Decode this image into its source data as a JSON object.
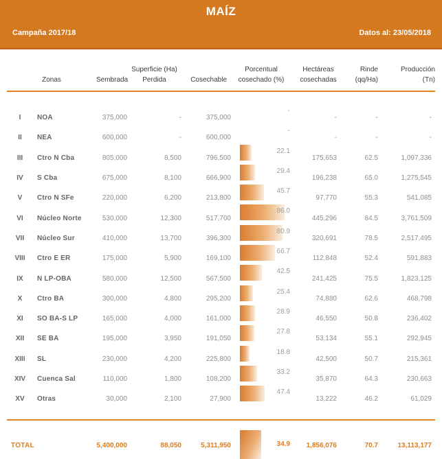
{
  "colors": {
    "accent_orange": "#D4791F",
    "rule_orange": "#E5831F",
    "total_orange": "#E07C1E",
    "bar_start": "#DB7C2D",
    "bar_end": "#F9EDE0",
    "header_text": "#3C3C3C",
    "label_text": "#646464",
    "value_text": "#8E8E8E"
  },
  "band": {
    "title": "MAÍZ",
    "campaign": "Campaña 2017/18",
    "data_as_of": "Datos al: 23/05/2018"
  },
  "table": {
    "headers": {
      "zonas": "Zonas",
      "sembrada": "Sembrada",
      "superficie_group": "Superficie (Ha)",
      "perdida": "Perdida",
      "cosechable": "Cosechable",
      "porcentual_l1": "Porcentual",
      "porcentual_l2": "cosechado (%)",
      "hectareas_l1": "Hectáreas",
      "hectareas_l2": "cosechadas",
      "rinde_l1": "Rinde",
      "rinde_l2": "(qq/Ha)",
      "produccion_l1": "Producción",
      "produccion_l2": "(Tn)"
    },
    "rows": [
      {
        "num": "I",
        "zona": "NOA",
        "sembrada": "375,000",
        "perdida": "-",
        "cosechable": "375,000",
        "pct": null,
        "pct_label": "-",
        "hectareas": "-",
        "rinde": "-",
        "produccion": "-"
      },
      {
        "num": "II",
        "zona": "NEA",
        "sembrada": "600,000",
        "perdida": "-",
        "cosechable": "600,000",
        "pct": null,
        "pct_label": "-",
        "hectareas": "-",
        "rinde": "-",
        "produccion": "-"
      },
      {
        "num": "III",
        "zona": "Ctro N Cba",
        "sembrada": "805,000",
        "perdida": "8,500",
        "cosechable": "796,500",
        "pct": 22.1,
        "pct_label": "22.1",
        "hectareas": "175,653",
        "rinde": "62.5",
        "produccion": "1,097,336"
      },
      {
        "num": "IV",
        "zona": "S Cba",
        "sembrada": "675,000",
        "perdida": "8,100",
        "cosechable": "666,900",
        "pct": 29.4,
        "pct_label": "29.4",
        "hectareas": "196,238",
        "rinde": "65.0",
        "produccion": "1,275,545"
      },
      {
        "num": "V",
        "zona": "Ctro N SFe",
        "sembrada": "220,000",
        "perdida": "6,200",
        "cosechable": "213,800",
        "pct": 45.7,
        "pct_label": "45.7",
        "hectareas": "97,770",
        "rinde": "55.3",
        "produccion": "541,085"
      },
      {
        "num": "VI",
        "zona": "Núcleo Norte",
        "sembrada": "530,000",
        "perdida": "12,300",
        "cosechable": "517,700",
        "pct": 86.0,
        "pct_label": "86.0",
        "hectareas": "445,296",
        "rinde": "84.5",
        "produccion": "3,761,509"
      },
      {
        "num": "VII",
        "zona": "Núcleo Sur",
        "sembrada": "410,000",
        "perdida": "13,700",
        "cosechable": "396,300",
        "pct": 80.9,
        "pct_label": "80.9",
        "hectareas": "320,691",
        "rinde": "78.5",
        "produccion": "2,517,495"
      },
      {
        "num": "VIII",
        "zona": "Ctro E ER",
        "sembrada": "175,000",
        "perdida": "5,900",
        "cosechable": "169,100",
        "pct": 66.7,
        "pct_label": "66.7",
        "hectareas": "112,848",
        "rinde": "52.4",
        "produccion": "591,883"
      },
      {
        "num": "IX",
        "zona": "N LP-OBA",
        "sembrada": "580,000",
        "perdida": "12,500",
        "cosechable": "567,500",
        "pct": 42.5,
        "pct_label": "42.5",
        "hectareas": "241,425",
        "rinde": "75.5",
        "produccion": "1,823,125"
      },
      {
        "num": "X",
        "zona": "Ctro BA",
        "sembrada": "300,000",
        "perdida": "4,800",
        "cosechable": "295,200",
        "pct": 25.4,
        "pct_label": "25.4",
        "hectareas": "74,880",
        "rinde": "62.6",
        "produccion": "468,798"
      },
      {
        "num": "XI",
        "zona": "SO BA-S LP",
        "sembrada": "165,000",
        "perdida": "4,000",
        "cosechable": "161,000",
        "pct": 28.9,
        "pct_label": "28.9",
        "hectareas": "46,550",
        "rinde": "50.8",
        "produccion": "236,402"
      },
      {
        "num": "XII",
        "zona": "SE BA",
        "sembrada": "195,000",
        "perdida": "3,950",
        "cosechable": "191,050",
        "pct": 27.8,
        "pct_label": "27.8",
        "hectareas": "53,134",
        "rinde": "55.1",
        "produccion": "292,945"
      },
      {
        "num": "XIII",
        "zona": "SL",
        "sembrada": "230,000",
        "perdida": "4,200",
        "cosechable": "225,800",
        "pct": 18.8,
        "pct_label": "18.8",
        "hectareas": "42,500",
        "rinde": "50.7",
        "produccion": "215,361"
      },
      {
        "num": "XIV",
        "zona": "Cuenca Sal",
        "sembrada": "110,000",
        "perdida": "1,800",
        "cosechable": "108,200",
        "pct": 33.2,
        "pct_label": "33.2",
        "hectareas": "35,870",
        "rinde": "64.3",
        "produccion": "230,663"
      },
      {
        "num": "XV",
        "zona": "Otras",
        "sembrada": "30,000",
        "perdida": "2,100",
        "cosechable": "27,900",
        "pct": 47.4,
        "pct_label": "47.4",
        "hectareas": "13,222",
        "rinde": "46.2",
        "produccion": "61,029"
      }
    ],
    "total": {
      "label": "TOTAL",
      "sembrada": "5,400,000",
      "perdida": "88,050",
      "cosechable": "5,311,950",
      "pct": 34.9,
      "pct_label": "34.9",
      "hectareas": "1,856,076",
      "rinde": "70.7",
      "produccion": "13,113,177"
    }
  },
  "chart_data": {
    "type": "table",
    "title": "MAÍZ",
    "subtitle": "Campaña 2017/18 — Datos al: 23/05/2018",
    "embedded_bar_column": "Porcentual cosechado (%)",
    "bar_range": [
      0,
      100
    ],
    "columns": [
      "Zonas",
      "Superficie (Ha) Sembrada",
      "Superficie (Ha) Perdida",
      "Superficie (Ha) Cosechable",
      "Porcentual cosechado (%)",
      "Hectáreas cosechadas",
      "Rinde (qq/Ha)",
      "Producción (Tn)"
    ],
    "categories": [
      "I NOA",
      "II NEA",
      "III Ctro N Cba",
      "IV S Cba",
      "V Ctro N SFe",
      "VI Núcleo Norte",
      "VII Núcleo Sur",
      "VIII Ctro E ER",
      "IX N LP-OBA",
      "X Ctro BA",
      "XI SO BA-S LP",
      "XII SE BA",
      "XIII SL",
      "XIV Cuenca Sal",
      "XV Otras"
    ],
    "series": [
      {
        "name": "Sembrada (Ha)",
        "values": [
          375000,
          600000,
          805000,
          675000,
          220000,
          530000,
          410000,
          175000,
          580000,
          300000,
          165000,
          195000,
          230000,
          110000,
          30000
        ]
      },
      {
        "name": "Perdida (Ha)",
        "values": [
          null,
          null,
          8500,
          8100,
          6200,
          12300,
          13700,
          5900,
          12500,
          4800,
          4000,
          3950,
          4200,
          1800,
          2100
        ]
      },
      {
        "name": "Cosechable (Ha)",
        "values": [
          375000,
          600000,
          796500,
          666900,
          213800,
          517700,
          396300,
          169100,
          567500,
          295200,
          161000,
          191050,
          225800,
          108200,
          27900
        ]
      },
      {
        "name": "Porcentual cosechado (%)",
        "values": [
          null,
          null,
          22.1,
          29.4,
          45.7,
          86.0,
          80.9,
          66.7,
          42.5,
          25.4,
          28.9,
          27.8,
          18.8,
          33.2,
          47.4
        ]
      },
      {
        "name": "Hectáreas cosechadas",
        "values": [
          null,
          null,
          175653,
          196238,
          97770,
          445296,
          320691,
          112848,
          241425,
          74880,
          46550,
          53134,
          42500,
          35870,
          13222
        ]
      },
      {
        "name": "Rinde (qq/Ha)",
        "values": [
          null,
          null,
          62.5,
          65.0,
          55.3,
          84.5,
          78.5,
          52.4,
          75.5,
          62.6,
          50.8,
          55.1,
          50.7,
          64.3,
          46.2
        ]
      },
      {
        "name": "Producción (Tn)",
        "values": [
          null,
          null,
          1097336,
          1275545,
          541085,
          3761509,
          2517495,
          591883,
          1823125,
          468798,
          236402,
          292945,
          215361,
          230663,
          61029
        ]
      }
    ],
    "total_row": {
      "label": "TOTAL",
      "sembrada": 5400000,
      "perdida": 88050,
      "cosechable": 5311950,
      "porcentual_cosechado": 34.9,
      "hectareas_cosechadas": 1856076,
      "rinde": 70.7,
      "produccion": 13113177
    }
  }
}
